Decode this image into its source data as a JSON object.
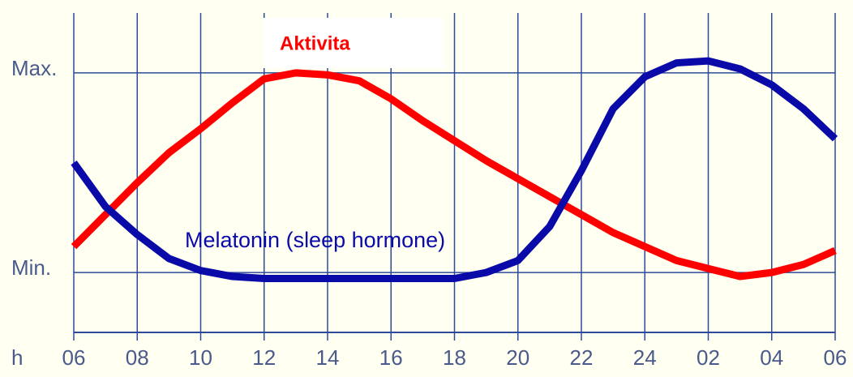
{
  "chart_data": {
    "type": "line",
    "xlabel": "h",
    "x": [
      6,
      7,
      8,
      9,
      10,
      11,
      12,
      13,
      14,
      15,
      16,
      17,
      18,
      19,
      20,
      21,
      22,
      23,
      24,
      25,
      26,
      27,
      28,
      29,
      30
    ],
    "series": [
      {
        "name": "Aktivita",
        "color": "#ff0000",
        "values": [
          0.13,
          0.29,
          0.45,
          0.6,
          0.72,
          0.85,
          0.97,
          1.0,
          0.99,
          0.96,
          0.87,
          0.76,
          0.66,
          0.56,
          0.47,
          0.38,
          0.29,
          0.2,
          0.13,
          0.06,
          0.02,
          -0.02,
          0.0,
          0.04,
          0.11
        ]
      },
      {
        "name": "Melatonin (sleep hormone)",
        "color": "#0a0aa8",
        "values": [
          0.55,
          0.33,
          0.19,
          0.07,
          0.01,
          -0.02,
          -0.03,
          -0.03,
          -0.03,
          -0.03,
          -0.03,
          -0.03,
          -0.03,
          0.0,
          0.06,
          0.23,
          0.51,
          0.82,
          0.98,
          1.05,
          1.06,
          1.02,
          0.94,
          0.82,
          0.67
        ]
      }
    ],
    "xlim": [
      6,
      30
    ],
    "xticks": [
      {
        "value": 6,
        "label": "06"
      },
      {
        "value": 8,
        "label": "08"
      },
      10,
      12,
      14,
      16,
      18,
      20,
      22,
      24,
      {
        "value": 26,
        "label": "02"
      },
      {
        "value": 28,
        "label": "04"
      },
      {
        "value": 30,
        "label": "06"
      }
    ],
    "ylim": [
      -0.3,
      1.3
    ],
    "yticks": [
      {
        "value": 0,
        "label": "Min."
      },
      {
        "value": 1,
        "label": "Max."
      }
    ],
    "grid": true
  }
}
